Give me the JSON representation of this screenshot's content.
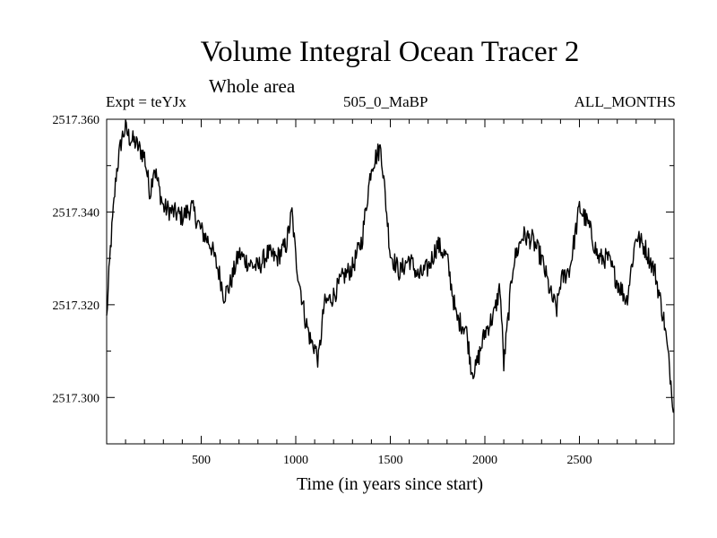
{
  "chart_data": {
    "type": "line",
    "title": "Volume Integral Ocean Tracer 2",
    "subtitle": "Whole area",
    "annotations": {
      "left": "Expt = teYJx",
      "center": "505_0_MaBP",
      "right": "ALL_MONTHS"
    },
    "xlabel": "Time (in years since start)",
    "ylabel": "",
    "xlim": [
      0,
      3000
    ],
    "ylim": [
      2517.29,
      2517.36
    ],
    "x_ticks": [
      500,
      1000,
      1500,
      2000,
      2500
    ],
    "x_tick_labels": [
      "500",
      "1000",
      "1500",
      "2000",
      "2500"
    ],
    "y_ticks": [
      2517.3,
      2517.32,
      2517.34,
      2517.36
    ],
    "y_tick_labels": [
      "2517.300",
      "2517.320",
      "2517.340",
      "2517.360"
    ],
    "series": [
      {
        "name": "Volume Integral Ocean Tracer 2",
        "x": [
          0,
          20,
          50,
          80,
          100,
          120,
          150,
          200,
          230,
          250,
          300,
          350,
          400,
          450,
          500,
          550,
          600,
          620,
          650,
          700,
          750,
          800,
          850,
          900,
          950,
          980,
          1000,
          1050,
          1080,
          1100,
          1120,
          1150,
          1200,
          1250,
          1300,
          1350,
          1400,
          1450,
          1500,
          1550,
          1600,
          1650,
          1700,
          1750,
          1800,
          1850,
          1900,
          1930,
          1950,
          2000,
          2050,
          2080,
          2100,
          2150,
          2200,
          2250,
          2300,
          2350,
          2380,
          2400,
          2450,
          2500,
          2550,
          2600,
          2650,
          2700,
          2750,
          2800,
          2850,
          2900,
          2950,
          2980,
          3000
        ],
        "values": [
          2517.317,
          2517.332,
          2517.348,
          2517.356,
          2517.358,
          2517.356,
          2517.355,
          2517.352,
          2517.344,
          2517.35,
          2517.341,
          2517.34,
          2517.339,
          2517.341,
          2517.336,
          2517.333,
          2517.326,
          2517.322,
          2517.324,
          2517.331,
          2517.329,
          2517.328,
          2517.331,
          2517.33,
          2517.333,
          2517.34,
          2517.33,
          2517.317,
          2517.312,
          2517.311,
          2517.308,
          2517.32,
          2517.322,
          2517.326,
          2517.328,
          2517.334,
          2517.35,
          2517.354,
          2517.331,
          2517.327,
          2517.33,
          2517.326,
          2517.328,
          2517.333,
          2517.33,
          2517.317,
          2517.315,
          2517.306,
          2517.306,
          2517.314,
          2517.318,
          2517.324,
          2517.307,
          2517.329,
          2517.335,
          2517.334,
          2517.33,
          2517.322,
          2517.319,
          2517.325,
          2517.328,
          2517.341,
          2517.337,
          2517.33,
          2517.33,
          2517.325,
          2517.321,
          2517.335,
          2517.332,
          2517.327,
          2517.316,
          2517.305,
          2517.297
        ]
      }
    ]
  }
}
